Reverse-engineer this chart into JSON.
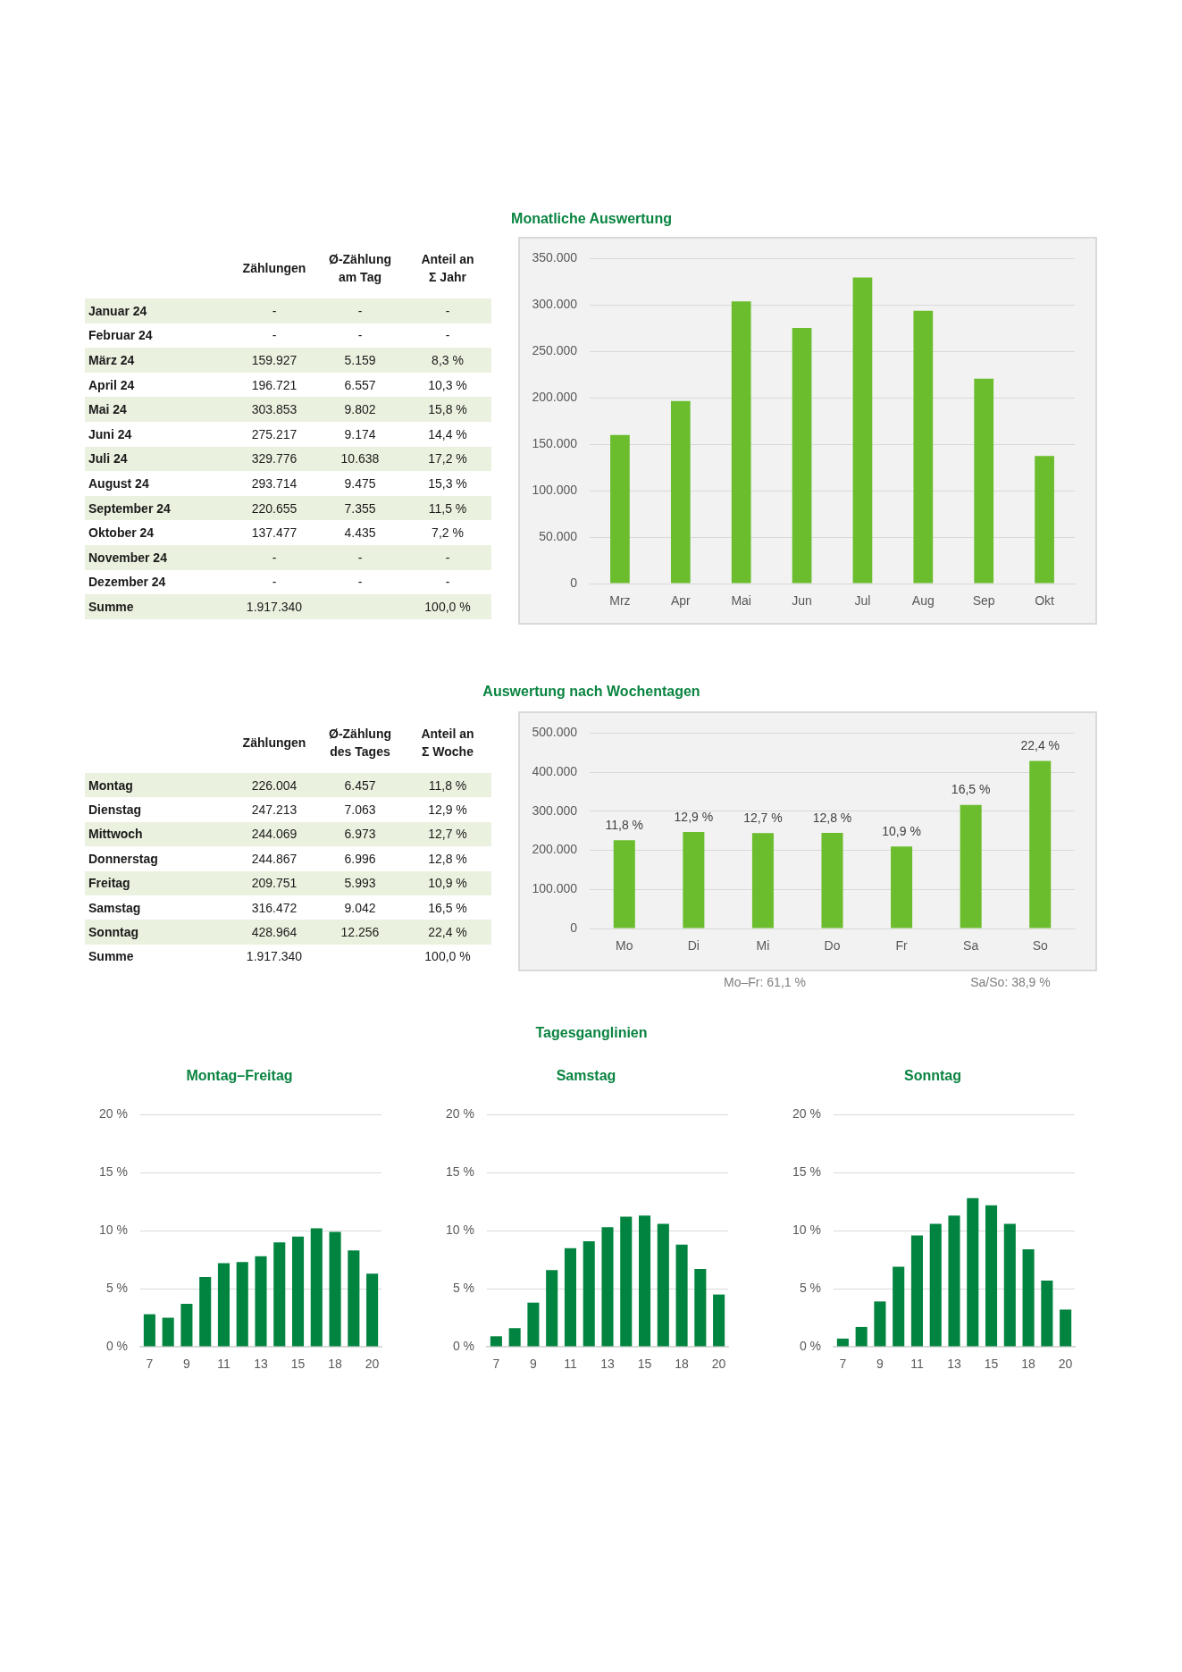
{
  "chart_data": [
    {
      "type": "other",
      "categories": [
        "Zählungen",
        "Ø-Zählung am Tag",
        "Anteil an Σ Jahr"
      ],
      "y_categories": [
        "Januar 24",
        "Februar 24",
        "März 24",
        "April 24",
        "Mai 24",
        "Juni 24",
        "Juli 24",
        "August 24",
        "September 24",
        "Oktober 24",
        "November 24",
        "Dezember 24",
        "Summe"
      ],
      "cell_labels": [
        [
          "-",
          "-",
          "-"
        ],
        [
          "-",
          "-",
          "-"
        ],
        [
          "159.927",
          "5.159",
          "8,3 %"
        ],
        [
          "196.721",
          "6.557",
          "10,3 %"
        ],
        [
          "303.853",
          "9.802",
          "15,8 %"
        ],
        [
          "275.217",
          "9.174",
          "14,4 %"
        ],
        [
          "329.776",
          "10.638",
          "17,2 %"
        ],
        [
          "293.714",
          "9.475",
          "15,3 %"
        ],
        [
          "220.655",
          "7.355",
          "11,5 %"
        ],
        [
          "137.477",
          "4.435",
          "7,2 %"
        ],
        [
          "-",
          "-",
          "-"
        ],
        [
          "-",
          "-",
          "-"
        ],
        [
          "1.917.340",
          null,
          "100,0 %"
        ]
      ]
    },
    {
      "type": "bar",
      "title": "Monatliche Auswertung",
      "categories": [
        "Mrz",
        "Apr",
        "Mai",
        "Jun",
        "Jul",
        "Aug",
        "Sep",
        "Okt"
      ],
      "values": [
        159927,
        196721,
        303853,
        275217,
        329776,
        293714,
        220655,
        137477
      ],
      "color": "#6bbd2d",
      "ylim": [
        0,
        350000
      ],
      "yticks": [
        0,
        {
          "value": 50000,
          "label": "50.000"
        },
        {
          "value": 100000,
          "label": "100.000"
        },
        {
          "value": 150000,
          "label": "150.000"
        },
        {
          "value": 200000,
          "label": "200.000"
        },
        {
          "value": 250000,
          "label": "250.000"
        },
        {
          "value": 300000,
          "label": "300.000"
        },
        {
          "value": 350000,
          "label": "350.000"
        }
      ],
      "grid": "y"
    },
    {
      "type": "other",
      "categories": [
        "Zählungen",
        "Ø-Zählung des Tages",
        "Anteil an Σ Woche"
      ],
      "y_categories": [
        "Montag",
        "Dienstag",
        "Mittwoch",
        "Donnerstag",
        "Freitag",
        "Samstag",
        "Sonntag",
        "Summe"
      ],
      "cell_labels": [
        [
          "226.004",
          "6.457",
          "11,8 %"
        ],
        [
          "247.213",
          "7.063",
          "12,9 %"
        ],
        [
          "244.069",
          "6.973",
          "12,7 %"
        ],
        [
          "244.867",
          "6.996",
          "12,8 %"
        ],
        [
          "209.751",
          "5.993",
          "10,9 %"
        ],
        [
          "316.472",
          "9.042",
          "16,5 %"
        ],
        [
          "428.964",
          "12.256",
          "22,4 %"
        ],
        [
          "1.917.340",
          null,
          "100,0 %"
        ]
      ]
    },
    {
      "type": "bar",
      "title": "Auswertung nach Wochentagen",
      "categories": [
        "Mo",
        "Di",
        "Mi",
        "Do",
        "Fr",
        "Sa",
        "So"
      ],
      "values": [
        226004,
        247213,
        244069,
        244867,
        209751,
        316472,
        428964
      ],
      "color": "#6bbd2d",
      "ylim": [
        0,
        500000
      ],
      "yticks": [
        0,
        {
          "value": 100000,
          "label": "100.000"
        },
        {
          "value": 200000,
          "label": "200.000"
        },
        {
          "value": 300000,
          "label": "300.000"
        },
        {
          "value": 400000,
          "label": "400.000"
        },
        {
          "value": 500000,
          "label": "500.000"
        }
      ],
      "grid": "y",
      "annotations": [
        {
          "text": "11,8 %",
          "x": "Mo",
          "y": 226004
        },
        {
          "text": "12,9 %",
          "x": "Di",
          "y": 247213
        },
        {
          "text": "12,7 %",
          "x": "Mi",
          "y": 244069
        },
        {
          "text": "12,8 %",
          "x": "Do",
          "y": 244867
        },
        {
          "text": "10,9 %",
          "x": "Fr",
          "y": 209751
        },
        {
          "text": "16,5 %",
          "x": "Sa",
          "y": 316472
        },
        {
          "text": "22,4 %",
          "x": "So",
          "y": 428964
        },
        "Mo–Fr: 61,1 %",
        "Sa/So: 38,9 %"
      ]
    },
    {
      "type": "other",
      "title": "Tagesganglinien"
    },
    {
      "type": "bar",
      "title": "Montag–Freitag",
      "categories": [
        "7",
        null,
        "9",
        null,
        "11",
        null,
        "13",
        null,
        "15",
        null,
        "18",
        null,
        "20"
      ],
      "values": [
        2.8,
        2.5,
        3.7,
        6.0,
        7.2,
        7.3,
        7.8,
        9.0,
        9.5,
        10.2,
        9.9,
        8.3,
        6.3
      ],
      "color": "#00843f",
      "ylim": [
        0,
        20
      ],
      "yticks": [
        {
          "value": 0,
          "label": "0 %"
        },
        {
          "value": 5,
          "label": "5 %"
        },
        {
          "value": 10,
          "label": "10 %"
        },
        {
          "value": 15,
          "label": "15 %"
        },
        {
          "value": 20,
          "label": "20 %"
        }
      ],
      "grid": "y"
    },
    {
      "type": "bar",
      "title": "Samstag",
      "categories": [
        "7",
        null,
        "9",
        null,
        "11",
        null,
        "13",
        null,
        "15",
        null,
        "18",
        null,
        "20"
      ],
      "values": [
        0.9,
        1.6,
        3.8,
        6.6,
        8.5,
        9.1,
        10.3,
        11.2,
        11.3,
        10.6,
        8.8,
        6.7,
        4.5
      ],
      "color": "#00843f",
      "ylim": [
        0,
        20
      ],
      "yticks": [
        {
          "value": 0,
          "label": "0 %"
        },
        {
          "value": 5,
          "label": "5 %"
        },
        {
          "value": 10,
          "label": "10 %"
        },
        {
          "value": 15,
          "label": "15 %"
        },
        {
          "value": 20,
          "label": "20 %"
        }
      ],
      "grid": "y"
    },
    {
      "type": "bar",
      "title": "Sonntag",
      "categories": [
        "7",
        null,
        "9",
        null,
        "11",
        null,
        "13",
        null,
        "15",
        null,
        "18",
        null,
        "20"
      ],
      "values": [
        0.7,
        1.7,
        3.9,
        6.9,
        9.6,
        10.6,
        11.3,
        12.8,
        12.2,
        10.6,
        8.4,
        5.7,
        3.2
      ],
      "color": "#00843f",
      "ylim": [
        0,
        20
      ],
      "yticks": [
        {
          "value": 0,
          "label": "0 %"
        },
        {
          "value": 5,
          "label": "5 %"
        },
        {
          "value": 10,
          "label": "10 %"
        },
        {
          "value": 15,
          "label": "15 %"
        },
        {
          "value": 20,
          "label": "20 %"
        }
      ],
      "grid": "y"
    }
  ]
}
